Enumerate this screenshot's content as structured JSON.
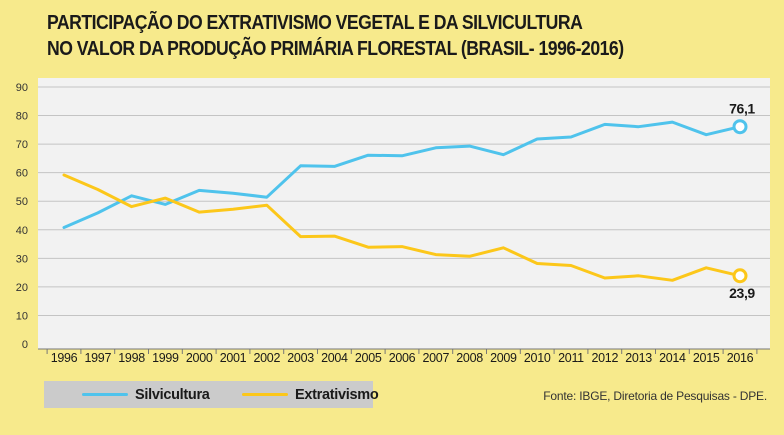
{
  "title_line1": "PARTICIPAÇÃO DO EXTRATIVISMO VEGETAL E DA SILVICULTURA",
  "title_line2": "NO VALOR DA PRODUÇÃO PRIMÁRIA FLORESTAL (BRASIL- 1996-2016)",
  "source": "Fonte: IBGE, Diretoria de Pesquisas - DPE.",
  "colors": {
    "silvicultura": "#4fc3ec",
    "extrativismo": "#fcc71a",
    "background": "#f7ea8c",
    "plot": "#f2f2f2"
  },
  "chart_data": {
    "type": "line",
    "x": [
      "1996",
      "1997",
      "1998",
      "1999",
      "2000",
      "2001",
      "2002",
      "2003",
      "2004",
      "2005",
      "2006",
      "2007",
      "2008",
      "2009",
      "2010",
      "2011",
      "2012",
      "2013",
      "2014",
      "2015",
      "2016"
    ],
    "ylim": [
      0,
      90
    ],
    "yticks": [
      0,
      10,
      20,
      30,
      40,
      50,
      60,
      70,
      80,
      90
    ],
    "grid": true,
    "legend_position": "bottom-left",
    "series": [
      {
        "name": "Silvicultura",
        "color": "#4fc3ec",
        "values": [
          40.8,
          45.9,
          51.9,
          48.9,
          53.8,
          52.8,
          51.4,
          62.4,
          62.2,
          66.1,
          65.9,
          68.7,
          69.3,
          66.3,
          71.8,
          72.5,
          76.9,
          76.1,
          77.7,
          73.3,
          76.1
        ],
        "end_label": "76,1"
      },
      {
        "name": "Extrativismo",
        "color": "#fcc71a",
        "values": [
          59.2,
          54.1,
          48.1,
          51.1,
          46.2,
          47.2,
          48.6,
          37.6,
          37.8,
          33.9,
          34.1,
          31.3,
          30.7,
          33.7,
          28.2,
          27.5,
          23.1,
          23.9,
          22.3,
          26.7,
          23.9
        ],
        "end_label": "23,9"
      }
    ]
  }
}
